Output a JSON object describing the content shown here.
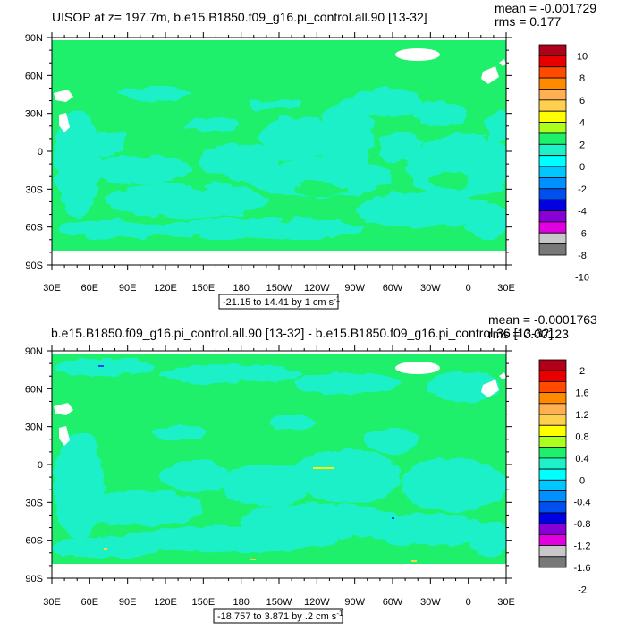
{
  "colors": {
    "ocean_main": "#1EF06C",
    "ocean_light": "#1EF0C8",
    "land": "#FFFFFF",
    "frame": "#000000"
  },
  "panels": [
    {
      "title": "UISOP at z= 197.7m, b.e15.B1850.f09_g16.pi_control.all.90 [13-32]",
      "mean": "mean = -0.001729",
      "rms": "rms = 0.177",
      "range_label": "-21.15 to 14.41 by 1 cm s",
      "range_unit_exp": "-1",
      "lat_ticks": [
        "90N",
        "60N",
        "30N",
        "0",
        "30S",
        "60S",
        "90S"
      ],
      "lon_ticks": [
        "30E",
        "60E",
        "90E",
        "120E",
        "150E",
        "180",
        "150W",
        "120W",
        "90W",
        "60W",
        "30W",
        "0",
        "30E"
      ],
      "colorbar": {
        "labels": [
          "10",
          "8",
          "6",
          "4",
          "2",
          "0",
          "-2",
          "-4",
          "-6",
          "-8",
          "-10"
        ],
        "colors": [
          "#B0001A",
          "#E80000",
          "#FF4A00",
          "#FF8A00",
          "#FFB050",
          "#FFD050",
          "#FFFF00",
          "#AAFF1E",
          "#1EF06C",
          "#1EF0C8",
          "#00FFFF",
          "#00C8FF",
          "#0090FF",
          "#0050F0",
          "#0000E0",
          "#8800D8",
          "#E000E0",
          "#C8C8C8",
          "#787878"
        ]
      }
    },
    {
      "title": "b.e15.B1850.f09_g16.pi_control.all.90 [13-32] - b.e15.B1850.f09_g16.pi_control.36 [13-32]",
      "mean": "mean = -0.0001763",
      "rms": "rms = 0.00123",
      "range_label": "-18.757 to 3.871 by .2 cm s",
      "range_unit_exp": "-1",
      "lat_ticks": [
        "90N",
        "60N",
        "30N",
        "0",
        "30S",
        "60S",
        "90S"
      ],
      "lon_ticks": [
        "30E",
        "60E",
        "90E",
        "120E",
        "150E",
        "180",
        "150W",
        "120W",
        "90W",
        "60W",
        "30W",
        "0",
        "30E"
      ],
      "colorbar": {
        "labels": [
          "2",
          "1.6",
          "1.2",
          "0.8",
          "0.4",
          "0",
          "-0.4",
          "-0.8",
          "-1.2",
          "-1.6",
          "-2"
        ],
        "colors": [
          "#B0001A",
          "#E80000",
          "#FF4A00",
          "#FF8A00",
          "#FFB050",
          "#FFD050",
          "#FFFF00",
          "#AAFF1E",
          "#1EF06C",
          "#1EF0C8",
          "#00FFFF",
          "#00C8FF",
          "#0090FF",
          "#0050F0",
          "#0000E0",
          "#8800D8",
          "#E000E0",
          "#C8C8C8",
          "#787878"
        ]
      }
    }
  ]
}
